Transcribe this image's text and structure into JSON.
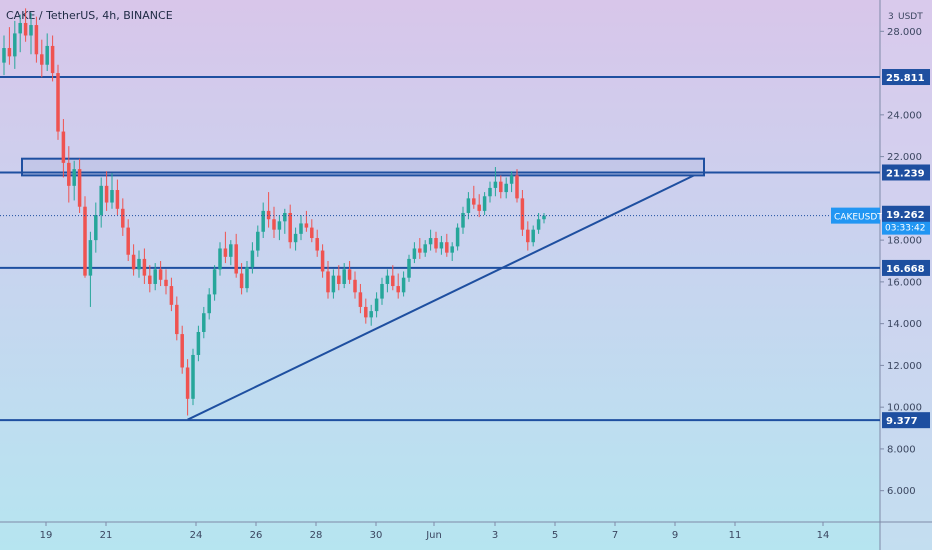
{
  "chart_data": {
    "type": "candlestick",
    "title": "CAKE / TetherUS, 4h, BINANCE",
    "symbol": "CAKEUSDT",
    "currency_label": "USDT",
    "last_price": "19.173",
    "countdown": "03:33:42",
    "y_axis_top_label": "3",
    "y_ticks": [
      "28.000",
      "24.000",
      "22.000",
      "18.000",
      "16.000",
      "14.000",
      "12.000",
      "10.000",
      "8.000",
      "6.000"
    ],
    "x_ticks": [
      "19",
      "21",
      "24",
      "26",
      "28",
      "30",
      "Jun",
      "3",
      "5",
      "7",
      "9",
      "11",
      "14"
    ],
    "ylim": [
      4.5,
      29.5
    ],
    "horizontal_levels": [
      {
        "value": 25.811,
        "label": "25.811"
      },
      {
        "value": 21.239,
        "label": "21.239"
      },
      {
        "value": 16.668,
        "label": "16.668"
      },
      {
        "value": 9.377,
        "label": "9.377"
      }
    ],
    "price_markers": [
      {
        "value": 19.262,
        "label": "19.262"
      }
    ],
    "resistance_zone": {
      "low": 21.1,
      "high": 21.9
    },
    "trendline": {
      "from_value": 9.4,
      "to_value": 21.1
    },
    "colors": {
      "up": "#26a69a",
      "down": "#ef5350",
      "line": "#1e4fa0",
      "accent": "#2196f3"
    },
    "candles": [
      {
        "o": 26.5,
        "h": 27.8,
        "l": 25.9,
        "c": 27.2
      },
      {
        "o": 27.2,
        "h": 28.2,
        "l": 26.4,
        "c": 26.8
      },
      {
        "o": 26.8,
        "h": 28.5,
        "l": 26.2,
        "c": 27.9
      },
      {
        "o": 27.9,
        "h": 28.8,
        "l": 27.0,
        "c": 28.4
      },
      {
        "o": 28.4,
        "h": 29.1,
        "l": 27.5,
        "c": 27.8
      },
      {
        "o": 27.8,
        "h": 28.9,
        "l": 26.9,
        "c": 28.3
      },
      {
        "o": 28.3,
        "h": 28.7,
        "l": 26.5,
        "c": 26.9
      },
      {
        "o": 26.9,
        "h": 27.6,
        "l": 25.8,
        "c": 26.4
      },
      {
        "o": 26.4,
        "h": 27.9,
        "l": 26.1,
        "c": 27.3
      },
      {
        "o": 27.3,
        "h": 27.8,
        "l": 25.6,
        "c": 26.0
      },
      {
        "o": 26.0,
        "h": 26.4,
        "l": 22.8,
        "c": 23.2
      },
      {
        "o": 23.2,
        "h": 23.8,
        "l": 21.0,
        "c": 21.7
      },
      {
        "o": 21.7,
        "h": 22.5,
        "l": 19.8,
        "c": 20.6
      },
      {
        "o": 20.6,
        "h": 21.8,
        "l": 19.9,
        "c": 21.4
      },
      {
        "o": 21.4,
        "h": 21.9,
        "l": 19.3,
        "c": 19.6
      },
      {
        "o": 19.6,
        "h": 20.1,
        "l": 16.2,
        "c": 16.3
      },
      {
        "o": 16.3,
        "h": 18.4,
        "l": 14.8,
        "c": 18.0
      },
      {
        "o": 18.0,
        "h": 19.8,
        "l": 17.4,
        "c": 19.2
      },
      {
        "o": 19.2,
        "h": 21.0,
        "l": 18.6,
        "c": 20.6
      },
      {
        "o": 20.6,
        "h": 21.3,
        "l": 19.4,
        "c": 19.8
      },
      {
        "o": 19.8,
        "h": 21.2,
        "l": 19.5,
        "c": 20.4
      },
      {
        "o": 20.4,
        "h": 20.9,
        "l": 19.2,
        "c": 19.5
      },
      {
        "o": 19.5,
        "h": 20.0,
        "l": 18.2,
        "c": 18.6
      },
      {
        "o": 18.6,
        "h": 19.0,
        "l": 17.0,
        "c": 17.3
      },
      {
        "o": 17.3,
        "h": 17.8,
        "l": 16.3,
        "c": 16.6
      },
      {
        "o": 16.6,
        "h": 17.5,
        "l": 16.2,
        "c": 17.1
      },
      {
        "o": 17.1,
        "h": 17.6,
        "l": 15.9,
        "c": 16.3
      },
      {
        "o": 16.3,
        "h": 16.8,
        "l": 15.5,
        "c": 15.9
      },
      {
        "o": 15.9,
        "h": 16.9,
        "l": 15.6,
        "c": 16.6
      },
      {
        "o": 16.6,
        "h": 17.0,
        "l": 15.8,
        "c": 16.1
      },
      {
        "o": 16.1,
        "h": 16.6,
        "l": 15.4,
        "c": 15.8
      },
      {
        "o": 15.8,
        "h": 16.2,
        "l": 14.6,
        "c": 14.9
      },
      {
        "o": 14.9,
        "h": 15.3,
        "l": 13.2,
        "c": 13.5
      },
      {
        "o": 13.5,
        "h": 13.9,
        "l": 11.6,
        "c": 11.9
      },
      {
        "o": 11.9,
        "h": 12.3,
        "l": 9.6,
        "c": 10.4
      },
      {
        "o": 10.4,
        "h": 12.8,
        "l": 10.1,
        "c": 12.5
      },
      {
        "o": 12.5,
        "h": 13.9,
        "l": 12.2,
        "c": 13.6
      },
      {
        "o": 13.6,
        "h": 14.8,
        "l": 13.3,
        "c": 14.5
      },
      {
        "o": 14.5,
        "h": 15.7,
        "l": 14.2,
        "c": 15.4
      },
      {
        "o": 15.4,
        "h": 16.8,
        "l": 15.1,
        "c": 16.6
      },
      {
        "o": 16.6,
        "h": 17.9,
        "l": 16.3,
        "c": 17.6
      },
      {
        "o": 17.6,
        "h": 18.4,
        "l": 16.9,
        "c": 17.2
      },
      {
        "o": 17.2,
        "h": 18.0,
        "l": 16.8,
        "c": 17.8
      },
      {
        "o": 17.8,
        "h": 18.3,
        "l": 16.2,
        "c": 16.4
      },
      {
        "o": 16.4,
        "h": 16.9,
        "l": 15.4,
        "c": 15.7
      },
      {
        "o": 15.7,
        "h": 17.0,
        "l": 15.5,
        "c": 16.7
      },
      {
        "o": 16.7,
        "h": 17.9,
        "l": 16.4,
        "c": 17.5
      },
      {
        "o": 17.5,
        "h": 18.7,
        "l": 17.2,
        "c": 18.4
      },
      {
        "o": 18.4,
        "h": 19.8,
        "l": 18.1,
        "c": 19.4
      },
      {
        "o": 19.4,
        "h": 20.3,
        "l": 18.6,
        "c": 19.0
      },
      {
        "o": 19.0,
        "h": 19.6,
        "l": 18.1,
        "c": 18.5
      },
      {
        "o": 18.5,
        "h": 19.2,
        "l": 18.0,
        "c": 18.9
      },
      {
        "o": 18.9,
        "h": 19.5,
        "l": 18.3,
        "c": 19.3
      },
      {
        "o": 19.3,
        "h": 19.7,
        "l": 17.6,
        "c": 17.9
      },
      {
        "o": 17.9,
        "h": 18.6,
        "l": 17.5,
        "c": 18.3
      },
      {
        "o": 18.3,
        "h": 19.2,
        "l": 18.0,
        "c": 18.8
      },
      {
        "o": 18.8,
        "h": 19.4,
        "l": 18.4,
        "c": 18.6
      },
      {
        "o": 18.6,
        "h": 19.0,
        "l": 17.9,
        "c": 18.1
      },
      {
        "o": 18.1,
        "h": 18.5,
        "l": 17.2,
        "c": 17.5
      },
      {
        "o": 17.5,
        "h": 17.8,
        "l": 16.2,
        "c": 16.5
      },
      {
        "o": 16.5,
        "h": 17.0,
        "l": 15.2,
        "c": 15.5
      },
      {
        "o": 15.5,
        "h": 16.6,
        "l": 15.2,
        "c": 16.3
      },
      {
        "o": 16.3,
        "h": 16.8,
        "l": 15.6,
        "c": 15.9
      },
      {
        "o": 15.9,
        "h": 16.9,
        "l": 15.7,
        "c": 16.6
      },
      {
        "o": 16.6,
        "h": 17.0,
        "l": 15.9,
        "c": 16.1
      },
      {
        "o": 16.1,
        "h": 16.5,
        "l": 15.2,
        "c": 15.5
      },
      {
        "o": 15.5,
        "h": 15.9,
        "l": 14.5,
        "c": 14.8
      },
      {
        "o": 14.8,
        "h": 15.2,
        "l": 14.0,
        "c": 14.3
      },
      {
        "o": 14.3,
        "h": 14.9,
        "l": 13.9,
        "c": 14.6
      },
      {
        "o": 14.6,
        "h": 15.5,
        "l": 14.3,
        "c": 15.2
      },
      {
        "o": 15.2,
        "h": 16.2,
        "l": 14.9,
        "c": 15.9
      },
      {
        "o": 15.9,
        "h": 16.6,
        "l": 15.5,
        "c": 16.3
      },
      {
        "o": 16.3,
        "h": 16.8,
        "l": 15.6,
        "c": 15.8
      },
      {
        "o": 15.8,
        "h": 16.4,
        "l": 15.2,
        "c": 15.5
      },
      {
        "o": 15.5,
        "h": 16.5,
        "l": 15.3,
        "c": 16.2
      },
      {
        "o": 16.2,
        "h": 17.3,
        "l": 16.0,
        "c": 17.1
      },
      {
        "o": 17.1,
        "h": 17.9,
        "l": 16.9,
        "c": 17.6
      },
      {
        "o": 17.6,
        "h": 18.1,
        "l": 17.1,
        "c": 17.4
      },
      {
        "o": 17.4,
        "h": 18.0,
        "l": 17.2,
        "c": 17.8
      },
      {
        "o": 17.8,
        "h": 18.5,
        "l": 17.5,
        "c": 18.1
      },
      {
        "o": 18.1,
        "h": 18.4,
        "l": 17.4,
        "c": 17.6
      },
      {
        "o": 17.6,
        "h": 18.2,
        "l": 17.3,
        "c": 17.9
      },
      {
        "o": 17.9,
        "h": 18.3,
        "l": 17.2,
        "c": 17.4
      },
      {
        "o": 17.4,
        "h": 17.9,
        "l": 17.0,
        "c": 17.7
      },
      {
        "o": 17.7,
        "h": 18.8,
        "l": 17.5,
        "c": 18.6
      },
      {
        "o": 18.6,
        "h": 19.6,
        "l": 18.3,
        "c": 19.3
      },
      {
        "o": 19.3,
        "h": 20.3,
        "l": 19.0,
        "c": 20.0
      },
      {
        "o": 20.0,
        "h": 20.6,
        "l": 19.5,
        "c": 19.7
      },
      {
        "o": 19.7,
        "h": 20.2,
        "l": 19.1,
        "c": 19.4
      },
      {
        "o": 19.4,
        "h": 20.3,
        "l": 19.2,
        "c": 20.1
      },
      {
        "o": 20.1,
        "h": 20.8,
        "l": 19.8,
        "c": 20.5
      },
      {
        "o": 20.5,
        "h": 21.5,
        "l": 20.1,
        "c": 20.8
      },
      {
        "o": 20.8,
        "h": 21.1,
        "l": 20.0,
        "c": 20.3
      },
      {
        "o": 20.3,
        "h": 21.0,
        "l": 20.0,
        "c": 20.7
      },
      {
        "o": 20.7,
        "h": 21.3,
        "l": 20.3,
        "c": 21.1
      },
      {
        "o": 21.1,
        "h": 21.4,
        "l": 19.8,
        "c": 20.0
      },
      {
        "o": 20.0,
        "h": 20.4,
        "l": 18.2,
        "c": 18.5
      },
      {
        "o": 18.5,
        "h": 18.9,
        "l": 17.5,
        "c": 17.9
      },
      {
        "o": 17.9,
        "h": 18.7,
        "l": 17.7,
        "c": 18.5
      },
      {
        "o": 18.5,
        "h": 19.3,
        "l": 18.3,
        "c": 19.0
      },
      {
        "o": 19.0,
        "h": 19.3,
        "l": 18.8,
        "c": 19.173
      }
    ]
  }
}
